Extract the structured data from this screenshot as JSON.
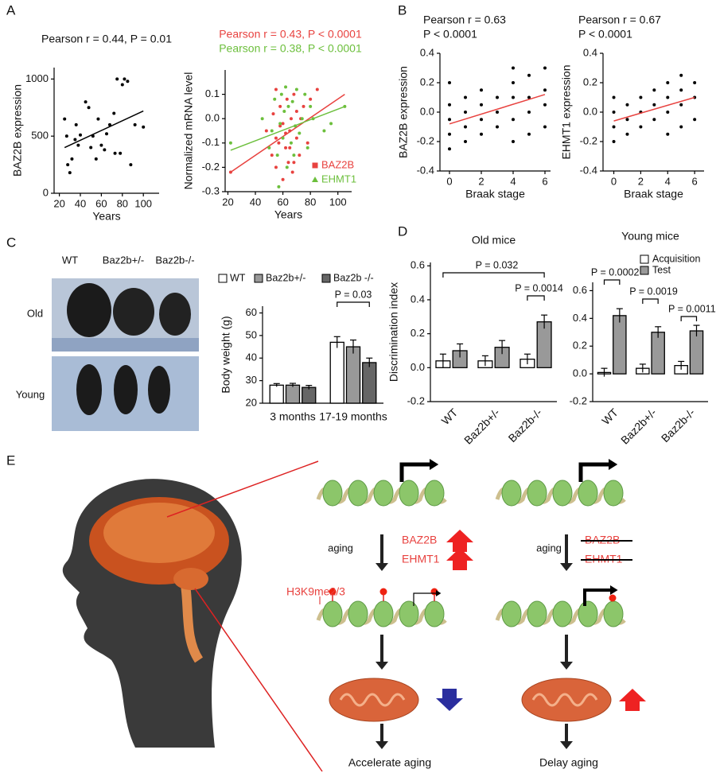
{
  "panel_labels": [
    "A",
    "B",
    "C",
    "D",
    "E"
  ],
  "chart_data": [
    {
      "type": "scatter",
      "title": "Pearson r = 0.44, P = 0.01",
      "x_label": "Years",
      "y_label": "BAZ2B expression",
      "x": [
        25,
        27,
        28,
        30,
        32,
        35,
        36,
        38,
        40,
        45,
        48,
        50,
        52,
        55,
        57,
        60,
        63,
        65,
        68,
        72,
        73,
        75,
        78,
        80,
        82,
        85,
        88,
        92,
        100
      ],
      "values": [
        650,
        500,
        250,
        180,
        300,
        470,
        600,
        420,
        510,
        800,
        750,
        400,
        500,
        300,
        650,
        420,
        380,
        520,
        600,
        700,
        350,
        1000,
        350,
        950,
        1000,
        980,
        250,
        600,
        580
      ],
      "color": "#000000",
      "trendline": {
        "x": [
          25,
          100
        ],
        "values": [
          400,
          720
        ],
        "color": "#000000"
      },
      "xlim": [
        15,
        115
      ],
      "xticks": [
        20,
        40,
        60,
        80,
        100
      ],
      "ylim": [
        0,
        1100
      ],
      "yticks": [
        0,
        500,
        1000
      ]
    },
    {
      "type": "scatter",
      "x_label": "Years",
      "y_label": "Normalized mRNA level",
      "annotations": [
        {
          "text": "Pearson r = 0.43, P < 0.0001",
          "color": "#e8423f"
        },
        {
          "text": "Pearson r = 0.38, P < 0.0001",
          "color": "#6cbf3c"
        }
      ],
      "series": [
        {
          "name": "BAZ2B",
          "color": "#e8423f",
          "marker": "square",
          "x": [
            22,
            48,
            52,
            53,
            55,
            55,
            57,
            58,
            60,
            60,
            62,
            63,
            64,
            65,
            66,
            67,
            68,
            70,
            70,
            72,
            73,
            75,
            78,
            80,
            85,
            55,
            58,
            62,
            65,
            68
          ],
          "values": [
            -0.22,
            -0.05,
            -0.15,
            0.02,
            -0.2,
            -0.08,
            -0.1,
            0.05,
            -0.25,
            -0.02,
            -0.12,
            0.08,
            -0.18,
            -0.05,
            0.0,
            -0.22,
            0.1,
            -0.08,
            0.03,
            -0.15,
            0.0,
            0.05,
            -0.1,
            0.08,
            0.12,
            0.12,
            -0.03,
            -0.06,
            -0.12,
            -0.18
          ],
          "trendline": {
            "x": [
              22,
              105
            ],
            "values": [
              -0.22,
              0.1
            ],
            "color": "#e8423f"
          }
        },
        {
          "name": "EHMT1",
          "color": "#6cbf3c",
          "marker": "triangle",
          "x": [
            22,
            45,
            50,
            52,
            54,
            56,
            58,
            59,
            60,
            61,
            63,
            64,
            66,
            67,
            69,
            70,
            72,
            74,
            76,
            78,
            80,
            82,
            90,
            95,
            105,
            57,
            62,
            68
          ],
          "values": [
            -0.1,
            0.0,
            -0.12,
            -0.05,
            0.08,
            -0.15,
            -0.02,
            0.1,
            -0.08,
            0.03,
            -0.2,
            0.05,
            -0.1,
            0.07,
            -0.03,
            0.12,
            -0.06,
            0.0,
            0.1,
            -0.12,
            0.05,
            0.0,
            -0.05,
            -0.02,
            0.05,
            -0.28,
            0.13,
            -0.15
          ],
          "trendline": {
            "x": [
              22,
              105
            ],
            "values": [
              -0.13,
              0.05
            ],
            "color": "#6cbf3c"
          }
        }
      ],
      "xlim": [
        18,
        110
      ],
      "xticks": [
        20,
        40,
        60,
        80,
        100
      ],
      "ylim": [
        -0.3,
        0.2
      ],
      "yticks": [
        -0.3,
        -0.2,
        -0.1,
        {
          "value": 0,
          "label": "0.0"
        },
        0.1
      ]
    },
    {
      "type": "scatter",
      "x_label": "Braak stage",
      "y_label": "BAZ2B expression",
      "annotations": [
        {
          "text": "Pearson r = 0.63"
        },
        {
          "text": "P < 0.0001"
        }
      ],
      "x": [
        0,
        0,
        0,
        0,
        0,
        1,
        1,
        1,
        1,
        2,
        2,
        2,
        2,
        3,
        3,
        3,
        4,
        4,
        4,
        4,
        4,
        5,
        5,
        5,
        5,
        6,
        6,
        6,
        6
      ],
      "values": [
        -0.25,
        -0.15,
        -0.05,
        0.05,
        0.2,
        -0.2,
        -0.1,
        0.0,
        0.1,
        -0.15,
        -0.05,
        0.05,
        0.15,
        -0.1,
        0.0,
        0.1,
        -0.2,
        -0.05,
        0.1,
        0.2,
        0.3,
        -0.15,
        0.0,
        0.1,
        0.25,
        -0.1,
        0.05,
        0.15,
        0.3
      ],
      "color": "#000000",
      "trendline": {
        "x": [
          0,
          6
        ],
        "values": [
          -0.08,
          0.12
        ],
        "color": "#e8423f"
      },
      "xlim": [
        -0.6,
        6.35
      ],
      "xticks": [
        0,
        2,
        4,
        6
      ],
      "ylim": [
        -0.4,
        0.4
      ],
      "yticks": [
        -0.4,
        -0.2,
        {
          "value": 0,
          "label": "0.0"
        },
        0.2,
        0.4
      ]
    },
    {
      "type": "scatter",
      "x_label": "Braak stage",
      "y_label": "EHMT1 expression",
      "annotations": [
        {
          "text": "Pearson r = 0.67"
        },
        {
          "text": "P < 0.0001"
        }
      ],
      "x": [
        0,
        0,
        0,
        0,
        1,
        1,
        1,
        2,
        2,
        2,
        3,
        3,
        3,
        4,
        4,
        4,
        4,
        5,
        5,
        5,
        5,
        6,
        6,
        6
      ],
      "values": [
        -0.2,
        -0.1,
        0.0,
        0.1,
        -0.15,
        -0.05,
        0.05,
        -0.1,
        0.0,
        0.1,
        -0.05,
        0.05,
        0.15,
        -0.15,
        0.0,
        0.1,
        0.2,
        -0.1,
        0.05,
        0.15,
        0.25,
        -0.05,
        0.1,
        0.2
      ],
      "color": "#000000",
      "trendline": {
        "x": [
          0,
          6
        ],
        "values": [
          -0.06,
          0.1
        ],
        "color": "#e8423f"
      },
      "xlim": [
        -0.8,
        6.7
      ],
      "xticks": [
        0,
        2,
        4,
        6
      ],
      "ylim": [
        -0.4,
        0.4
      ],
      "yticks": [
        -0.4,
        -0.2,
        {
          "value": 0,
          "label": "0.0"
        },
        0.2,
        0.4
      ]
    },
    {
      "type": "bar",
      "y_label": "Body weight (g)",
      "categories": [
        "3 months",
        "17-19 months"
      ],
      "series": [
        {
          "name": "WT",
          "color": "#ffffff",
          "values": [
            28,
            47
          ],
          "errors": [
            0.7,
            2.5
          ]
        },
        {
          "name": "Baz2b+/-",
          "color": "#999999",
          "values": [
            28,
            45
          ],
          "errors": [
            0.8,
            3
          ]
        },
        {
          "name": "Baz2b -/-",
          "color": "#666666",
          "values": [
            27,
            38
          ],
          "errors": [
            0.9,
            2
          ]
        }
      ],
      "annotations": [
        {
          "text": "P = 0.03"
        }
      ],
      "ylim": [
        20,
        63
      ],
      "yticks": [
        20,
        30,
        40,
        50,
        60
      ]
    },
    {
      "type": "bar",
      "title": "Old mice",
      "y_label": "Discrimination index",
      "categories": [
        "WT",
        "Baz2b+/-",
        "Baz2b-/-"
      ],
      "series": [
        {
          "name": "Acquisition",
          "color": "#ffffff",
          "values": [
            0.04,
            0.04,
            0.05
          ],
          "errors": [
            0.04,
            0.03,
            0.03
          ]
        },
        {
          "name": "Test",
          "color": "#999999",
          "values": [
            0.1,
            0.12,
            0.27
          ],
          "errors": [
            0.04,
            0.04,
            0.04
          ]
        }
      ],
      "legend": false,
      "annotations": [
        {
          "text": "P = 0.032"
        },
        {
          "text": "P = 0.0014"
        }
      ],
      "ylim": [
        -0.2,
        0.62
      ],
      "yticks": [
        -0.2,
        {
          "value": 0,
          "label": "0.0"
        },
        0.2,
        0.4,
        0.6
      ]
    },
    {
      "type": "bar",
      "title": "Young mice",
      "categories": [
        "WT",
        "Baz2b+/-",
        "Baz2b-/-"
      ],
      "series": [
        {
          "name": "Acquisition",
          "color": "#ffffff",
          "values": [
            0.01,
            0.04,
            0.06
          ],
          "errors": [
            0.03,
            0.03,
            0.03
          ]
        },
        {
          "name": "Test",
          "color": "#999999",
          "values": [
            0.42,
            0.3,
            0.31
          ],
          "errors": [
            0.05,
            0.04,
            0.04
          ]
        }
      ],
      "legend": true,
      "annotations": [
        {
          "text": "P = 0.0002"
        },
        {
          "text": "P = 0.0019"
        },
        {
          "text": "P = 0.0011"
        }
      ],
      "ylim": [
        -0.2,
        0.66
      ],
      "yticks": [
        -0.2,
        {
          "value": 0,
          "label": "0.0"
        },
        0.2,
        0.4,
        0.6
      ]
    }
  ],
  "photo": {
    "genotypes": [
      "WT",
      "Baz2b+/-",
      "Baz2b-/-"
    ],
    "rows": [
      "Old",
      "Young"
    ]
  },
  "diagram": {
    "left": {
      "aging": "aging",
      "genes": [
        "BAZ2B",
        "EHMT1"
      ],
      "mark": "H3K9me2/3",
      "outcome": "Accelerate aging"
    },
    "right": {
      "aging": "aging",
      "genes": [
        "BAZ2B",
        "EHMT1"
      ],
      "outcome": "Delay aging"
    }
  }
}
